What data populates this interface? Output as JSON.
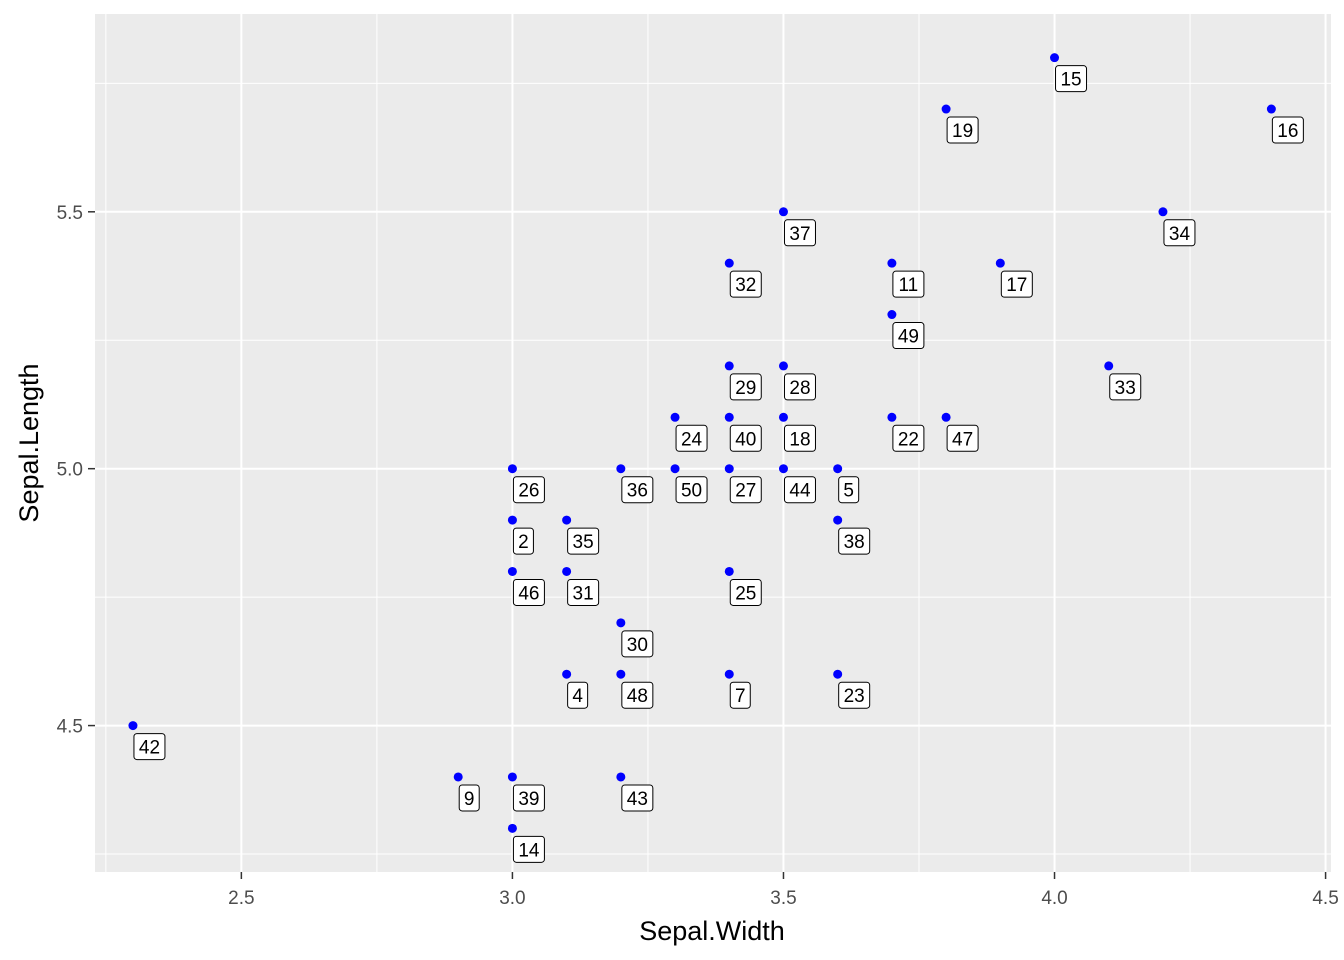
{
  "chart_data": {
    "type": "scatter",
    "title": "",
    "xlabel": "Sepal.Width",
    "ylabel": "Sepal.Length",
    "xlim": [
      2.23,
      4.51
    ],
    "ylim": [
      4.215,
      5.885
    ],
    "x_ticks": [
      "2.5",
      "3.0",
      "3.5",
      "4.0",
      "4.5"
    ],
    "y_ticks": [
      "4.5",
      "5.0",
      "5.5"
    ],
    "x_tick_values": [
      2.5,
      3.0,
      3.5,
      4.0,
      4.5
    ],
    "y_tick_values": [
      4.5,
      5.0,
      5.5
    ],
    "grid": true,
    "point_color": "#0000ff",
    "panel_color": "#ebebeb",
    "points": [
      {
        "label": "2",
        "x": 3.0,
        "y": 4.9
      },
      {
        "label": "4",
        "x": 3.1,
        "y": 4.6
      },
      {
        "label": "5",
        "x": 3.6,
        "y": 5.0
      },
      {
        "label": "7",
        "x": 3.4,
        "y": 4.6
      },
      {
        "label": "9",
        "x": 2.9,
        "y": 4.4
      },
      {
        "label": "11",
        "x": 3.7,
        "y": 5.4
      },
      {
        "label": "14",
        "x": 3.0,
        "y": 4.3
      },
      {
        "label": "15",
        "x": 4.0,
        "y": 5.8
      },
      {
        "label": "16",
        "x": 4.4,
        "y": 5.7
      },
      {
        "label": "17",
        "x": 3.9,
        "y": 5.4
      },
      {
        "label": "18",
        "x": 3.5,
        "y": 5.1
      },
      {
        "label": "19",
        "x": 3.8,
        "y": 5.7
      },
      {
        "label": "22",
        "x": 3.7,
        "y": 5.1
      },
      {
        "label": "23",
        "x": 3.6,
        "y": 4.6
      },
      {
        "label": "24",
        "x": 3.3,
        "y": 5.1
      },
      {
        "label": "25",
        "x": 3.4,
        "y": 4.8
      },
      {
        "label": "26",
        "x": 3.0,
        "y": 5.0
      },
      {
        "label": "27",
        "x": 3.4,
        "y": 5.0
      },
      {
        "label": "28",
        "x": 3.5,
        "y": 5.2
      },
      {
        "label": "29",
        "x": 3.4,
        "y": 5.2
      },
      {
        "label": "30",
        "x": 3.2,
        "y": 4.7
      },
      {
        "label": "31",
        "x": 3.1,
        "y": 4.8
      },
      {
        "label": "32",
        "x": 3.4,
        "y": 5.4
      },
      {
        "label": "33",
        "x": 4.1,
        "y": 5.2
      },
      {
        "label": "34",
        "x": 4.2,
        "y": 5.5
      },
      {
        "label": "35",
        "x": 3.1,
        "y": 4.9
      },
      {
        "label": "36",
        "x": 3.2,
        "y": 5.0
      },
      {
        "label": "37",
        "x": 3.5,
        "y": 5.5
      },
      {
        "label": "38",
        "x": 3.6,
        "y": 4.9
      },
      {
        "label": "39",
        "x": 3.0,
        "y": 4.4
      },
      {
        "label": "40",
        "x": 3.4,
        "y": 5.1
      },
      {
        "label": "42",
        "x": 2.3,
        "y": 4.5
      },
      {
        "label": "43",
        "x": 3.2,
        "y": 4.4
      },
      {
        "label": "44",
        "x": 3.5,
        "y": 5.0
      },
      {
        "label": "46",
        "x": 3.0,
        "y": 4.8
      },
      {
        "label": "47",
        "x": 3.8,
        "y": 5.1
      },
      {
        "label": "48",
        "x": 3.2,
        "y": 4.6
      },
      {
        "label": "49",
        "x": 3.7,
        "y": 5.3
      },
      {
        "label": "50",
        "x": 3.3,
        "y": 5.0
      }
    ]
  }
}
